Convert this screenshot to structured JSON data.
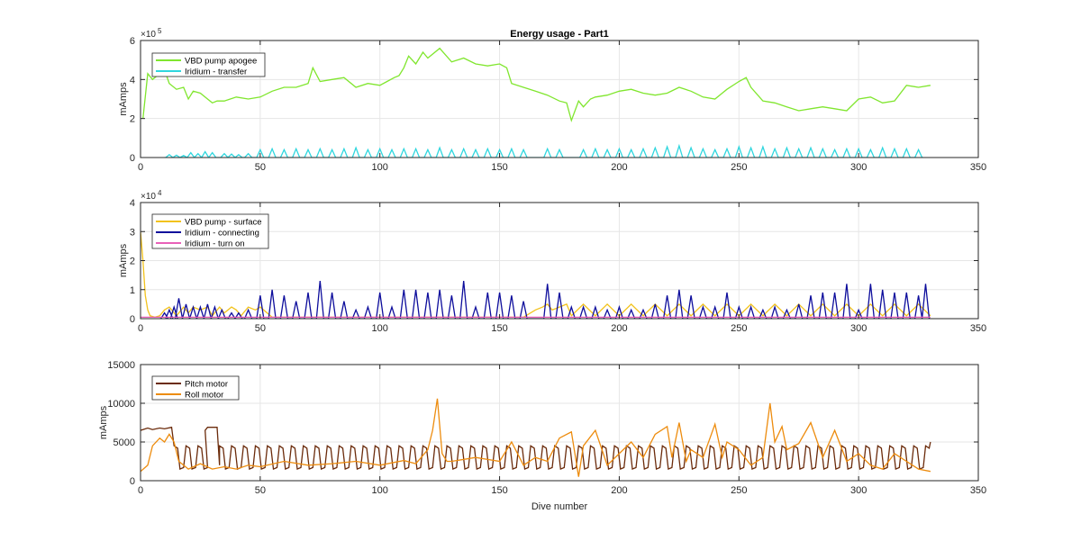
{
  "title": "Energy usage - Part1",
  "xlabel": "Dive number",
  "chart_data": [
    {
      "type": "line",
      "ylabel": "mAmps",
      "xlim": [
        0,
        350
      ],
      "ylim": [
        0,
        600000
      ],
      "xticks": [
        0,
        50,
        100,
        150,
        200,
        250,
        300,
        350
      ],
      "ytick_labels": [
        "0",
        "2",
        "4",
        "6"
      ],
      "yticks": [
        0,
        200000,
        400000,
        600000
      ],
      "exponent": "10",
      "exponent_power": "5",
      "grid": true,
      "legend_position": "top-left",
      "series": [
        {
          "name": "VBD pump apogee",
          "color": "#80e62e",
          "x": [
            1,
            3,
            5,
            7,
            10,
            12,
            15,
            18,
            20,
            22,
            25,
            28,
            30,
            32,
            35,
            40,
            45,
            50,
            55,
            60,
            65,
            70,
            72,
            75,
            80,
            85,
            90,
            95,
            100,
            103,
            106,
            108,
            110,
            112,
            115,
            118,
            120,
            125,
            130,
            135,
            140,
            145,
            150,
            153,
            155,
            160,
            165,
            170,
            175,
            178,
            180,
            183,
            185,
            188,
            190,
            195,
            200,
            205,
            210,
            215,
            220,
            225,
            230,
            235,
            240,
            243,
            245,
            250,
            253,
            255,
            260,
            265,
            270,
            275,
            280,
            285,
            290,
            295,
            300,
            305,
            310,
            315,
            320,
            325,
            330
          ],
          "values": [
            200000,
            430000,
            400000,
            420000,
            450000,
            380000,
            350000,
            360000,
            300000,
            340000,
            330000,
            300000,
            280000,
            290000,
            290000,
            310000,
            300000,
            310000,
            340000,
            360000,
            360000,
            380000,
            460000,
            390000,
            400000,
            410000,
            360000,
            380000,
            370000,
            390000,
            410000,
            420000,
            460000,
            520000,
            480000,
            540000,
            510000,
            560000,
            490000,
            510000,
            480000,
            470000,
            480000,
            460000,
            380000,
            360000,
            340000,
            320000,
            290000,
            280000,
            190000,
            290000,
            260000,
            300000,
            310000,
            320000,
            340000,
            350000,
            330000,
            320000,
            330000,
            360000,
            340000,
            310000,
            300000,
            330000,
            350000,
            390000,
            410000,
            360000,
            290000,
            280000,
            260000,
            240000,
            250000,
            260000,
            250000,
            240000,
            300000,
            310000,
            280000,
            290000,
            370000,
            360000,
            370000
          ]
        },
        {
          "name": "Iridium - transfer",
          "color": "#2ed6de",
          "peaks_x": [
            12,
            15,
            18,
            21,
            24,
            27,
            30,
            35,
            38,
            41,
            45,
            50,
            55,
            60,
            65,
            70,
            75,
            80,
            85,
            90,
            95,
            100,
            105,
            110,
            115,
            120,
            125,
            130,
            135,
            140,
            145,
            150,
            155,
            160,
            170,
            175,
            185,
            190,
            195,
            200,
            205,
            210,
            215,
            220,
            225,
            230,
            235,
            240,
            245,
            250,
            255,
            260,
            265,
            270,
            275,
            280,
            285,
            290,
            295,
            300,
            305,
            310,
            315,
            320,
            325
          ],
          "peaks": [
            15000,
            12000,
            10000,
            25000,
            20000,
            30000,
            25000,
            20000,
            18000,
            15000,
            20000,
            40000,
            45000,
            40000,
            45000,
            40000,
            45000,
            40000,
            45000,
            50000,
            40000,
            45000,
            40000,
            45000,
            45000,
            40000,
            50000,
            40000,
            45000,
            40000,
            45000,
            40000,
            45000,
            40000,
            45000,
            40000,
            40000,
            45000,
            40000,
            45000,
            40000,
            45000,
            50000,
            55000,
            60000,
            50000,
            45000,
            40000,
            45000,
            55000,
            50000,
            55000,
            45000,
            50000,
            45000,
            50000,
            45000,
            40000,
            45000,
            45000,
            40000,
            50000,
            45000,
            45000,
            40000
          ],
          "baseline": 0
        }
      ]
    },
    {
      "type": "line",
      "ylabel": "mAmps",
      "xlim": [
        0,
        350
      ],
      "ylim": [
        0,
        40000
      ],
      "xticks": [
        0,
        50,
        100,
        150,
        200,
        250,
        300,
        350
      ],
      "ytick_labels": [
        "0",
        "1",
        "2",
        "3",
        "4"
      ],
      "yticks": [
        0,
        10000,
        20000,
        30000,
        40000
      ],
      "exponent": "10",
      "exponent_power": "4",
      "grid": true,
      "legend_position": "top-left",
      "series": [
        {
          "name": "VBD pump - surface",
          "color": "#f2c21c",
          "x": [
            0,
            1,
            2,
            3,
            4,
            6,
            8,
            10,
            12,
            15,
            18,
            20,
            22,
            25,
            28,
            30,
            33,
            35,
            38,
            40,
            42,
            45,
            48,
            50,
            55,
            60,
            65,
            70,
            75,
            80,
            85,
            90,
            95,
            100,
            110,
            120,
            130,
            140,
            150,
            160,
            165,
            168,
            170,
            172,
            175,
            178,
            180,
            185,
            190,
            195,
            200,
            205,
            210,
            215,
            220,
            225,
            230,
            235,
            240,
            245,
            250,
            255,
            260,
            265,
            270,
            275,
            280,
            285,
            290,
            295,
            300,
            305,
            310,
            315,
            320,
            325,
            330
          ],
          "values": [
            30000,
            20000,
            8000,
            3000,
            1000,
            500,
            1000,
            3000,
            4000,
            1000,
            4000,
            2000,
            4000,
            3000,
            4000,
            1000,
            4000,
            2000,
            4000,
            3000,
            1000,
            4000,
            3000,
            4000,
            500,
            500,
            500,
            500,
            500,
            500,
            500,
            500,
            500,
            500,
            500,
            500,
            500,
            500,
            500,
            500,
            3000,
            4000,
            5000,
            3000,
            4000,
            5000,
            1000,
            5000,
            1000,
            5000,
            1000,
            5000,
            1000,
            5000,
            1000,
            5000,
            1000,
            5000,
            1000,
            5000,
            1000,
            5000,
            1000,
            5000,
            1000,
            5000,
            1000,
            5000,
            1000,
            5000,
            1000,
            5000,
            1000,
            5000,
            1000,
            5000,
            1000
          ]
        },
        {
          "name": "Iridium - connecting",
          "color": "#0d0d9c",
          "peaks_x": [
            10,
            12,
            14,
            16,
            19,
            22,
            25,
            28,
            31,
            34,
            38,
            41,
            45,
            50,
            55,
            60,
            65,
            70,
            75,
            80,
            85,
            90,
            95,
            100,
            105,
            110,
            115,
            120,
            125,
            130,
            135,
            140,
            145,
            150,
            155,
            160,
            170,
            175,
            180,
            185,
            190,
            195,
            200,
            205,
            210,
            215,
            220,
            225,
            230,
            235,
            240,
            245,
            250,
            255,
            260,
            265,
            270,
            275,
            280,
            285,
            290,
            295,
            300,
            305,
            310,
            315,
            320,
            325,
            328
          ],
          "peaks": [
            2000,
            3000,
            4000,
            7000,
            5000,
            4000,
            4000,
            5000,
            4000,
            3000,
            2000,
            2000,
            3000,
            8000,
            10000,
            8000,
            6000,
            9000,
            13000,
            9000,
            6000,
            3000,
            4000,
            9000,
            4000,
            10000,
            10000,
            9000,
            10000,
            8000,
            13000,
            4000,
            9000,
            9000,
            8000,
            6000,
            12000,
            9000,
            4000,
            4000,
            4000,
            3000,
            4000,
            3000,
            3000,
            5000,
            8000,
            10000,
            8000,
            4000,
            4000,
            9000,
            4000,
            4000,
            3000,
            4000,
            3000,
            5000,
            8000,
            9000,
            9000,
            12000,
            3000,
            12000,
            10000,
            9000,
            9000,
            8000,
            12000
          ],
          "baseline": 0
        },
        {
          "name": "Iridium - turn on",
          "color": "#e860b8",
          "x": [
            0,
            330
          ],
          "values": [
            500,
            500
          ]
        }
      ]
    },
    {
      "type": "line",
      "ylabel": "mAmps",
      "xlim": [
        0,
        350
      ],
      "ylim": [
        0,
        15000
      ],
      "xticks": [
        0,
        50,
        100,
        150,
        200,
        250,
        300,
        350
      ],
      "ytick_labels": [
        "0",
        "5000",
        "10000",
        "15000"
      ],
      "yticks": [
        0,
        5000,
        10000,
        15000
      ],
      "grid": true,
      "legend_position": "top-left",
      "series": [
        {
          "name": "Pitch motor",
          "color": "#6b2b0b",
          "period": 5,
          "x_start": 0,
          "x_end": 330,
          "high": 4500,
          "low": 1500,
          "initial": [
            [
              0,
              6500
            ],
            [
              3,
              6800
            ],
            [
              5,
              6600
            ],
            [
              8,
              6800
            ],
            [
              10,
              6700
            ],
            [
              13,
              6900
            ],
            [
              14,
              4500
            ]
          ],
          "plateau": [
            [
              27,
              6500
            ],
            [
              28,
              6900
            ],
            [
              32,
              6900
            ],
            [
              33,
              2000
            ]
          ]
        },
        {
          "name": "Roll motor",
          "color": "#ed8c0e",
          "x": [
            0,
            3,
            5,
            8,
            10,
            12,
            14,
            16,
            18,
            20,
            25,
            30,
            35,
            40,
            45,
            50,
            60,
            70,
            80,
            90,
            100,
            110,
            115,
            120,
            122,
            124,
            126,
            128,
            130,
            140,
            150,
            155,
            160,
            165,
            170,
            175,
            180,
            183,
            185,
            190,
            195,
            200,
            205,
            210,
            215,
            220,
            222,
            225,
            228,
            230,
            235,
            240,
            243,
            245,
            250,
            255,
            260,
            263,
            265,
            268,
            270,
            275,
            280,
            285,
            290,
            295,
            300,
            305,
            310,
            315,
            320,
            325,
            330
          ],
          "values": [
            1200,
            2000,
            4500,
            5500,
            5000,
            6000,
            5000,
            2500,
            2000,
            1500,
            2200,
            1500,
            1800,
            1500,
            2000,
            1800,
            2500,
            2000,
            2200,
            2500,
            2000,
            2600,
            2200,
            4000,
            6500,
            10600,
            3500,
            2500,
            2500,
            3000,
            2500,
            5000,
            2000,
            3000,
            2500,
            5500,
            6300,
            500,
            4500,
            6500,
            2000,
            3500,
            5000,
            3000,
            6000,
            7000,
            3000,
            7500,
            2500,
            4000,
            3000,
            7300,
            3000,
            5000,
            4000,
            2000,
            3000,
            10000,
            5000,
            7000,
            4000,
            4800,
            7500,
            3000,
            6500,
            2500,
            3500,
            2000,
            1500,
            3500,
            2500,
            1500,
            1200
          ]
        }
      ]
    }
  ]
}
